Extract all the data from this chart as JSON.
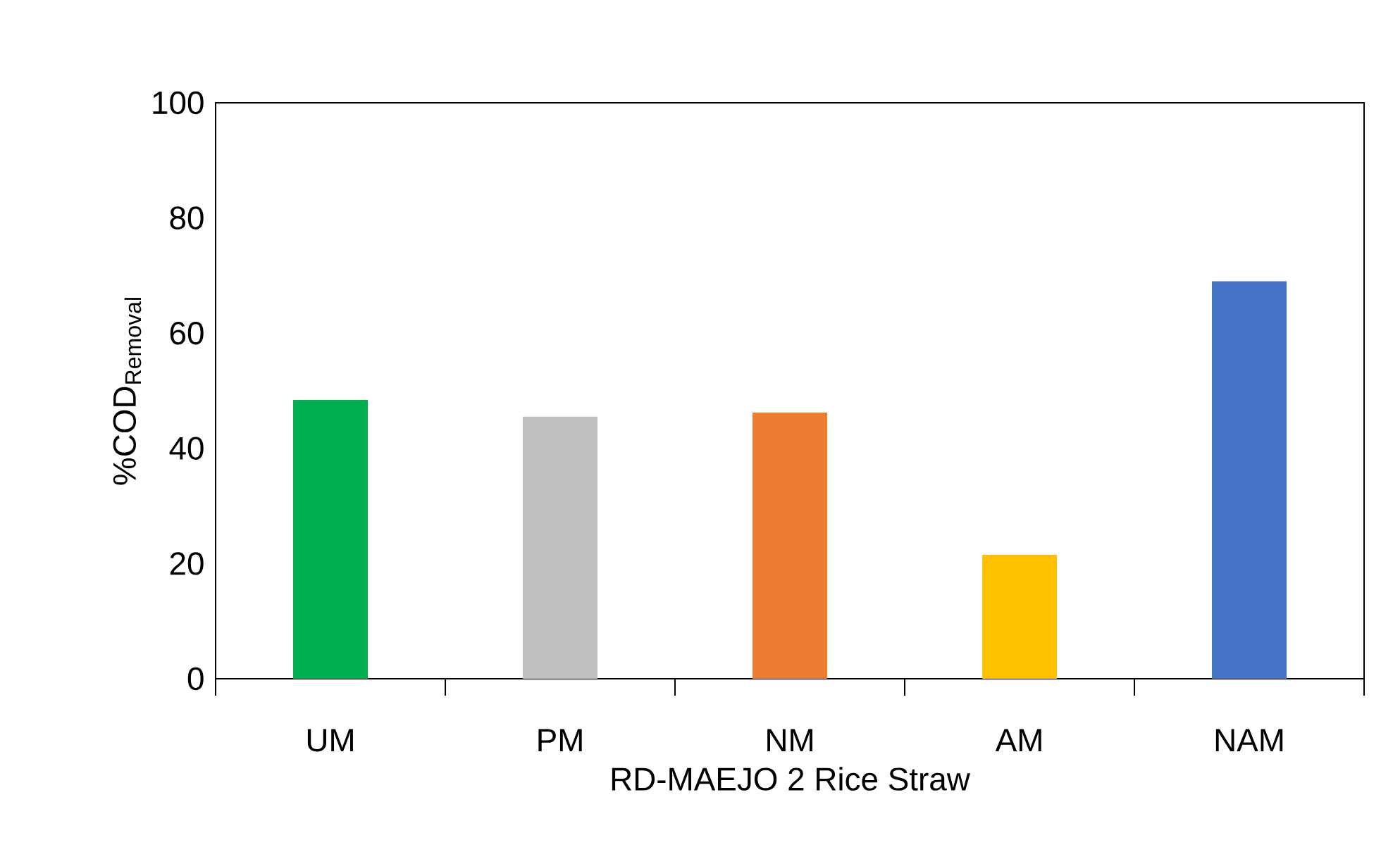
{
  "chart_data": {
    "type": "bar",
    "xlabel": "RD-MAEJO 2 Rice Straw",
    "ylabel": "%COD$_{Removal}$",
    "categories": [
      "UM",
      "PM",
      "NM",
      "AM",
      "NAM"
    ],
    "values": [
      48.4,
      45.5,
      46.2,
      21.5,
      69.0
    ],
    "colors": [
      "#00b050",
      "#bfbfbf",
      "#ed7d31",
      "#ffc000",
      "#4472c4"
    ],
    "ylim": [
      0,
      100
    ],
    "yticks": [
      0,
      20,
      40,
      60,
      80,
      100
    ],
    "grid": false
  }
}
